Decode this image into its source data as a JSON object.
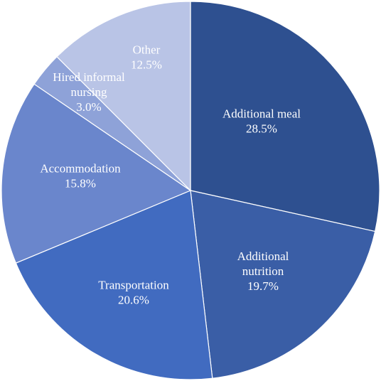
{
  "chart_data": {
    "type": "pie",
    "title": "",
    "start_angle_deg": 0,
    "direction": "clockwise",
    "slices": [
      {
        "label_lines": [
          "Additional meal"
        ],
        "percent_text": "28.5%",
        "value": 28.5,
        "color": "#2e5090"
      },
      {
        "label_lines": [
          "Additional",
          "nutrition"
        ],
        "percent_text": "19.7%",
        "value": 19.7,
        "color": "#3a5ea6"
      },
      {
        "label_lines": [
          "Transportation"
        ],
        "percent_text": "20.6%",
        "value": 20.6,
        "color": "#416bc0"
      },
      {
        "label_lines": [
          "Accommodation"
        ],
        "percent_text": "15.8%",
        "value": 15.8,
        "color": "#6a86cc"
      },
      {
        "label_lines": [
          "Hired informal",
          "nursing"
        ],
        "percent_text": "3.0%",
        "value": 3.0,
        "color": "#8ea2d8"
      },
      {
        "label_lines": [
          "Other"
        ],
        "percent_text": "12.5%",
        "value": 12.5,
        "color": "#b9c4e6"
      }
    ]
  }
}
